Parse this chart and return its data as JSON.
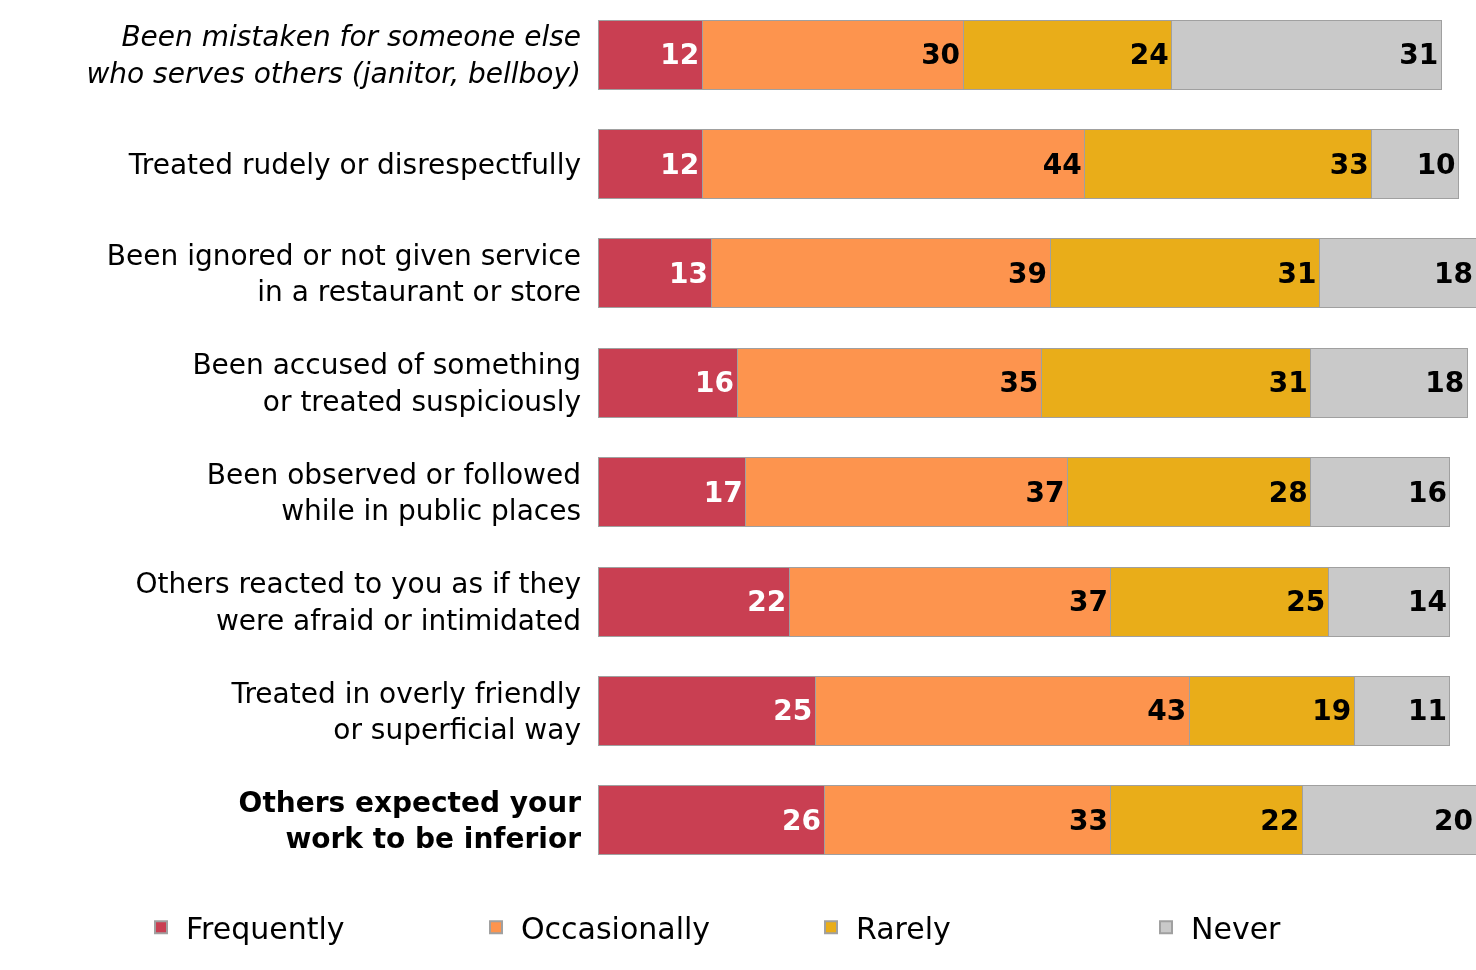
{
  "chart_data": {
    "type": "bar",
    "orientation": "horizontal",
    "stacked": true,
    "data_labels": true,
    "tick_labels": "y",
    "legend": "bottom",
    "categories": [
      "Been mistaken for someone else\nwho serves others (janitor, bellboy)",
      "Treated rudely or disrespectfully",
      "Been ignored or not given service\nin a restaurant or store",
      "Been accused of something\nor treated suspiciously",
      "Been observed or followed\nwhile in public places",
      "Others reacted to you as if they\nwere afraid or intimidated",
      "Treated in overly friendly\nor superficial way",
      "Others expected your\nwork to be inferior"
    ],
    "xlim": [
      0,
      101
    ],
    "series": [
      {
        "name": "Frequently",
        "color": "#c93f52",
        "values": [
          12,
          12,
          13,
          16,
          17,
          22,
          25,
          26
        ]
      },
      {
        "name": "Occasionally",
        "color": "#fd944e",
        "values": [
          30,
          44,
          39,
          35,
          37,
          37,
          43,
          33
        ]
      },
      {
        "name": "Rarely",
        "color": "#e9ad19",
        "values": [
          24,
          33,
          31,
          31,
          28,
          25,
          19,
          22
        ]
      },
      {
        "name": "Never",
        "color": "#c9c9c9",
        "values": [
          31,
          10,
          18,
          18,
          16,
          14,
          11,
          20
        ]
      }
    ]
  }
}
